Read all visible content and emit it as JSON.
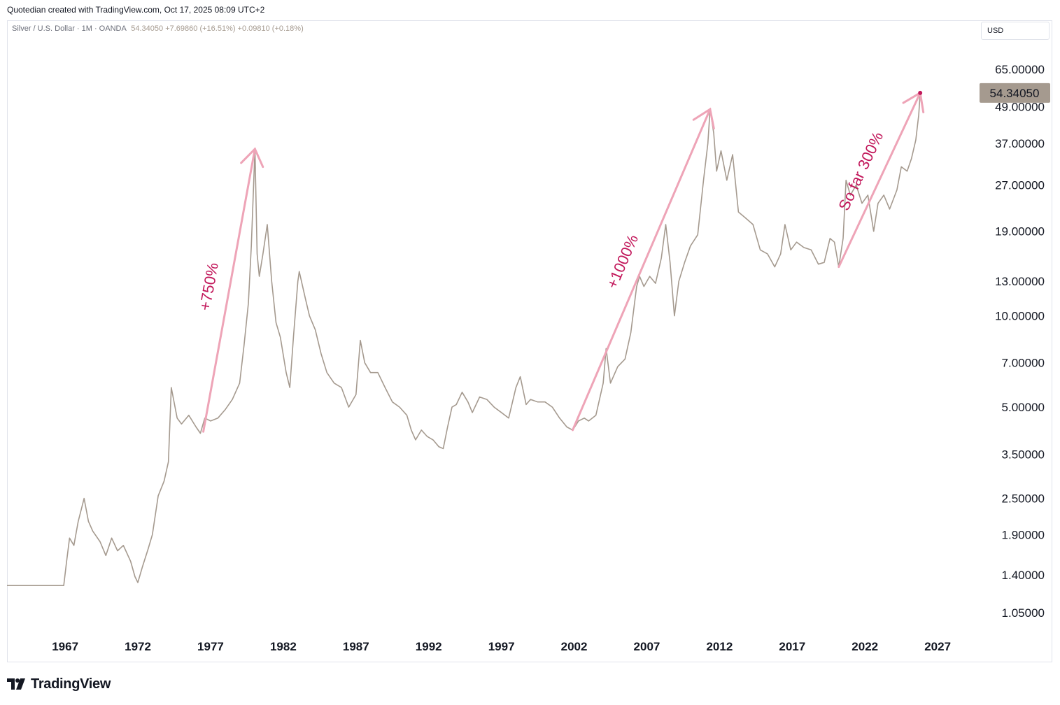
{
  "header": {
    "caption": "Quotedian created with TradingView.com, Oct 17, 2025 08:09 UTC+2"
  },
  "legend": {
    "symbol": "Silver / U.S. Dollar · 1M · OANDA",
    "values": "54.34050  +7.69860 (+16.51%)  +0.09810 (+0.18%)"
  },
  "currency": "USD",
  "footer": {
    "brand": "TradingView"
  },
  "colors": {
    "line": "#a59a8f",
    "annotation": "#eea4b7",
    "annotation_text": "#c2185b",
    "price_badge": "#a59a8f",
    "axis_text": "#131722"
  },
  "chart_data": {
    "type": "line",
    "title": "Silver / U.S. Dollar · 1M · OANDA",
    "y_scale": "log",
    "ylim": [
      0.9,
      80
    ],
    "xlim": [
      1963.0,
      2029.4
    ],
    "x_ticks": [
      1967,
      1972,
      1977,
      1982,
      1987,
      1992,
      1997,
      2002,
      2007,
      2012,
      2017,
      2022,
      2027
    ],
    "y_ticks": [
      1.05,
      1.4,
      1.9,
      2.5,
      3.5,
      5,
      7,
      10,
      13,
      19,
      27,
      37,
      49,
      65
    ],
    "y_tick_labels": [
      "1.05000",
      "1.40000",
      "1.90000",
      "2.50000",
      "3.50000",
      "5.00000",
      "7.00000",
      "10.00000",
      "13.00000",
      "19.00000",
      "27.00000",
      "37.00000",
      "49.00000",
      "65.00000"
    ],
    "last_price_label": "54.34050",
    "last_price": 54.3405,
    "series": [
      {
        "points": [
          [
            1963.0,
            1.29
          ],
          [
            1966.0,
            1.29
          ],
          [
            1966.9,
            1.29
          ],
          [
            1967.1,
            1.55
          ],
          [
            1967.3,
            1.85
          ],
          [
            1967.6,
            1.75
          ],
          [
            1967.9,
            2.1
          ],
          [
            1968.3,
            2.5
          ],
          [
            1968.6,
            2.1
          ],
          [
            1968.9,
            1.95
          ],
          [
            1969.4,
            1.8
          ],
          [
            1969.8,
            1.62
          ],
          [
            1970.2,
            1.85
          ],
          [
            1970.6,
            1.68
          ],
          [
            1971.0,
            1.75
          ],
          [
            1971.5,
            1.55
          ],
          [
            1971.8,
            1.38
          ],
          [
            1972.0,
            1.32
          ],
          [
            1972.3,
            1.48
          ],
          [
            1972.7,
            1.7
          ],
          [
            1973.0,
            1.9
          ],
          [
            1973.4,
            2.55
          ],
          [
            1973.8,
            2.85
          ],
          [
            1974.1,
            3.3
          ],
          [
            1974.3,
            5.8
          ],
          [
            1974.7,
            4.6
          ],
          [
            1975.0,
            4.4
          ],
          [
            1975.5,
            4.7
          ],
          [
            1976.0,
            4.3
          ],
          [
            1976.3,
            4.1
          ],
          [
            1976.6,
            4.6
          ],
          [
            1977.0,
            4.5
          ],
          [
            1977.5,
            4.6
          ],
          [
            1978.0,
            4.9
          ],
          [
            1978.5,
            5.3
          ],
          [
            1979.0,
            6.0
          ],
          [
            1979.3,
            8.0
          ],
          [
            1979.6,
            11.0
          ],
          [
            1979.8,
            17.0
          ],
          [
            1980.05,
            35.5
          ],
          [
            1980.2,
            16.0
          ],
          [
            1980.35,
            13.5
          ],
          [
            1980.6,
            16.0
          ],
          [
            1980.9,
            20.0
          ],
          [
            1981.2,
            13.0
          ],
          [
            1981.5,
            9.5
          ],
          [
            1981.8,
            8.5
          ],
          [
            1982.2,
            6.5
          ],
          [
            1982.45,
            5.8
          ],
          [
            1982.7,
            8.5
          ],
          [
            1983.0,
            13.0
          ],
          [
            1983.1,
            14.0
          ],
          [
            1983.5,
            11.5
          ],
          [
            1983.8,
            10.0
          ],
          [
            1984.2,
            9.0
          ],
          [
            1984.6,
            7.5
          ],
          [
            1985.0,
            6.5
          ],
          [
            1985.5,
            6.0
          ],
          [
            1986.0,
            5.8
          ],
          [
            1986.5,
            5.0
          ],
          [
            1987.0,
            5.5
          ],
          [
            1987.3,
            8.3
          ],
          [
            1987.6,
            7.0
          ],
          [
            1988.0,
            6.5
          ],
          [
            1988.5,
            6.5
          ],
          [
            1989.0,
            5.8
          ],
          [
            1989.5,
            5.2
          ],
          [
            1990.0,
            5.0
          ],
          [
            1990.5,
            4.7
          ],
          [
            1990.8,
            4.2
          ],
          [
            1991.1,
            3.9
          ],
          [
            1991.5,
            4.2
          ],
          [
            1991.9,
            4.0
          ],
          [
            1992.3,
            3.9
          ],
          [
            1992.7,
            3.7
          ],
          [
            1993.0,
            3.65
          ],
          [
            1993.3,
            4.3
          ],
          [
            1993.6,
            5.0
          ],
          [
            1993.9,
            5.1
          ],
          [
            1994.3,
            5.6
          ],
          [
            1994.7,
            5.2
          ],
          [
            1995.0,
            4.8
          ],
          [
            1995.5,
            5.4
          ],
          [
            1996.0,
            5.3
          ],
          [
            1996.5,
            5.0
          ],
          [
            1997.0,
            4.8
          ],
          [
            1997.5,
            4.6
          ],
          [
            1998.0,
            5.8
          ],
          [
            1998.3,
            6.3
          ],
          [
            1998.7,
            5.1
          ],
          [
            1999.0,
            5.3
          ],
          [
            1999.5,
            5.2
          ],
          [
            2000.0,
            5.2
          ],
          [
            2000.5,
            5.0
          ],
          [
            2001.0,
            4.6
          ],
          [
            2001.5,
            4.3
          ],
          [
            2001.9,
            4.2
          ],
          [
            2002.3,
            4.5
          ],
          [
            2002.7,
            4.6
          ],
          [
            2003.0,
            4.5
          ],
          [
            2003.5,
            4.7
          ],
          [
            2004.0,
            6.0
          ],
          [
            2004.2,
            7.8
          ],
          [
            2004.5,
            6.0
          ],
          [
            2005.0,
            6.8
          ],
          [
            2005.5,
            7.2
          ],
          [
            2005.9,
            8.8
          ],
          [
            2006.3,
            12.5
          ],
          [
            2006.5,
            13.5
          ],
          [
            2006.8,
            12.5
          ],
          [
            2007.2,
            13.5
          ],
          [
            2007.6,
            12.8
          ],
          [
            2008.0,
            15.5
          ],
          [
            2008.3,
            20.0
          ],
          [
            2008.6,
            15.0
          ],
          [
            2008.9,
            10.0
          ],
          [
            2009.2,
            13.0
          ],
          [
            2009.6,
            15.0
          ],
          [
            2010.0,
            17.0
          ],
          [
            2010.5,
            18.5
          ],
          [
            2010.9,
            28.0
          ],
          [
            2011.2,
            37.0
          ],
          [
            2011.35,
            48.0
          ],
          [
            2011.6,
            40.0
          ],
          [
            2011.8,
            30.0
          ],
          [
            2012.1,
            35.0
          ],
          [
            2012.5,
            28.0
          ],
          [
            2012.9,
            34.0
          ],
          [
            2013.3,
            22.0
          ],
          [
            2013.8,
            21.0
          ],
          [
            2014.3,
            20.0
          ],
          [
            2014.8,
            16.5
          ],
          [
            2015.3,
            16.0
          ],
          [
            2015.8,
            14.5
          ],
          [
            2016.2,
            16.0
          ],
          [
            2016.5,
            20.0
          ],
          [
            2016.9,
            16.5
          ],
          [
            2017.3,
            17.5
          ],
          [
            2017.8,
            16.8
          ],
          [
            2018.3,
            16.5
          ],
          [
            2018.8,
            14.8
          ],
          [
            2019.2,
            15.0
          ],
          [
            2019.6,
            18.0
          ],
          [
            2019.9,
            17.5
          ],
          [
            2020.2,
            14.5
          ],
          [
            2020.5,
            18.0
          ],
          [
            2020.7,
            28.0
          ],
          [
            2021.0,
            25.0
          ],
          [
            2021.4,
            27.0
          ],
          [
            2021.8,
            23.5
          ],
          [
            2022.2,
            25.0
          ],
          [
            2022.6,
            19.0
          ],
          [
            2022.9,
            23.5
          ],
          [
            2023.3,
            25.0
          ],
          [
            2023.7,
            22.5
          ],
          [
            2024.2,
            26.0
          ],
          [
            2024.5,
            31.0
          ],
          [
            2024.9,
            30.0
          ],
          [
            2025.2,
            33.0
          ],
          [
            2025.5,
            38.0
          ],
          [
            2025.7,
            46.0
          ],
          [
            2025.8,
            54.3405
          ]
        ]
      }
    ],
    "annotations": [
      {
        "label": "+750%",
        "from": [
          1976.5,
          4.15
        ],
        "to": [
          1980.05,
          35.5
        ]
      },
      {
        "label": "+1000%",
        "from": [
          2001.9,
          4.2
        ],
        "to": [
          2011.35,
          48.0
        ]
      },
      {
        "label": "So far 300%",
        "from": [
          2020.2,
          14.5
        ],
        "to": [
          2025.8,
          54.3405
        ]
      }
    ]
  }
}
